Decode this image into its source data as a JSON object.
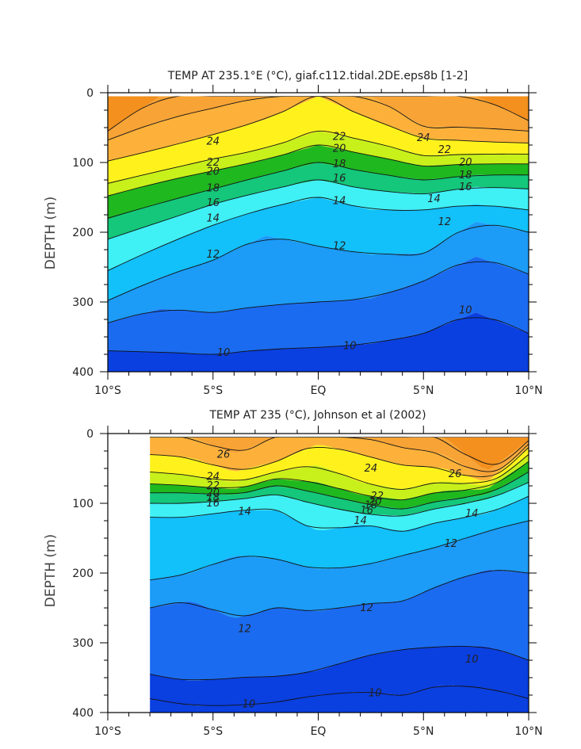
{
  "chart_data": [
    {
      "id": "top",
      "type": "heatmap",
      "title": "TEMP AT 235.1°E (°C), giaf.c112.tidal.2DE.eps8b [1-2]",
      "xlabel": "",
      "ylabel": "DEPTH (m)",
      "xlim": [
        -10,
        10
      ],
      "ylim": [
        0,
        400
      ],
      "y_inverted": true,
      "xticks": [
        {
          "v": -10,
          "label": "10°S"
        },
        {
          "v": -5,
          "label": "5°S"
        },
        {
          "v": 0,
          "label": "EQ"
        },
        {
          "v": 5,
          "label": "5°N"
        },
        {
          "v": 10,
          "label": "10°N"
        }
      ],
      "yticks": [
        0,
        100,
        200,
        300,
        400
      ],
      "data_x_range": [
        -10,
        10
      ],
      "data_y_range": [
        5,
        400
      ],
      "isotherm_depths": {
        "x": [
          -10,
          -7.5,
          -5,
          -2.5,
          0,
          2.5,
          5,
          7.5,
          10
        ],
        "levels": [
          {
            "t": 26,
            "depths": [
              55,
              5,
              5,
              5,
              5,
              5,
              5,
              5,
              40
            ]
          },
          {
            "t": 25,
            "depths": [
              68,
              40,
              22,
              5,
              5,
              5,
              48,
              50,
              55
            ]
          },
          {
            "t": 24,
            "depths": [
              98,
              80,
              60,
              38,
              5,
              38,
              65,
              70,
              72
            ]
          },
          {
            "t": 22,
            "depths": [
              130,
              112,
              95,
              80,
              55,
              70,
              90,
              88,
              88
            ]
          },
          {
            "t": 20,
            "depths": [
              148,
              128,
              112,
              96,
              75,
              90,
              105,
              102,
              102
            ]
          },
          {
            "t": 18,
            "depths": [
              180,
              158,
              138,
              118,
              100,
              115,
              125,
              118,
              118
            ]
          },
          {
            "t": 16,
            "depths": [
              210,
              185,
              160,
              140,
              125,
              140,
              145,
              135,
              138
            ]
          },
          {
            "t": 14,
            "depths": [
              255,
              220,
              190,
              165,
              150,
              168,
              168,
              160,
              168
            ]
          },
          {
            "t": 12,
            "depths": [
              298,
              265,
              240,
              205,
              220,
              232,
              230,
              185,
              200
            ]
          },
          {
            "t": 11,
            "depths": [
              330,
              310,
              315,
              305,
              300,
              295,
              270,
              235,
              260
            ]
          },
          {
            "t": 10,
            "depths": [
              370,
              372,
              375,
              368,
              365,
              360,
              345,
              315,
              345
            ]
          }
        ]
      },
      "contour_labels": [
        {
          "text": "24",
          "x": -5.0,
          "y": 70
        },
        {
          "text": "22",
          "x": -5.0,
          "y": 100
        },
        {
          "text": "20",
          "x": -5.0,
          "y": 113
        },
        {
          "text": "18",
          "x": -5.0,
          "y": 137
        },
        {
          "text": "16",
          "x": -5.0,
          "y": 158
        },
        {
          "text": "14",
          "x": -5.0,
          "y": 180
        },
        {
          "text": "12",
          "x": -5.0,
          "y": 232
        },
        {
          "text": "10",
          "x": -4.5,
          "y": 373
        },
        {
          "text": "22",
          "x": 1.0,
          "y": 63
        },
        {
          "text": "20",
          "x": 1.0,
          "y": 80
        },
        {
          "text": "18",
          "x": 1.0,
          "y": 102
        },
        {
          "text": "16",
          "x": 1.0,
          "y": 123
        },
        {
          "text": "14",
          "x": 1.0,
          "y": 155
        },
        {
          "text": "12",
          "x": 1.0,
          "y": 220
        },
        {
          "text": "10",
          "x": 1.5,
          "y": 363
        },
        {
          "text": "24",
          "x": 5.0,
          "y": 65
        },
        {
          "text": "22",
          "x": 6.0,
          "y": 82
        },
        {
          "text": "20",
          "x": 7.0,
          "y": 100
        },
        {
          "text": "18",
          "x": 7.0,
          "y": 118
        },
        {
          "text": "16",
          "x": 7.0,
          "y": 135
        },
        {
          "text": "14",
          "x": 5.5,
          "y": 152
        },
        {
          "text": "12",
          "x": 6.0,
          "y": 185
        },
        {
          "text": "10",
          "x": 7.0,
          "y": 312
        }
      ]
    },
    {
      "id": "bottom",
      "type": "heatmap",
      "title": "TEMP AT 235 (°C), Johnson et al (2002)",
      "xlabel": "",
      "ylabel": "DEPTH (m)",
      "xlim": [
        -10,
        10
      ],
      "ylim": [
        0,
        400
      ],
      "y_inverted": true,
      "xticks": [
        {
          "v": -10,
          "label": "10°S"
        },
        {
          "v": -5,
          "label": "5°S"
        },
        {
          "v": 0,
          "label": "EQ"
        },
        {
          "v": 5,
          "label": "5°N"
        },
        {
          "v": 10,
          "label": "10°N"
        }
      ],
      "yticks": [
        0,
        100,
        200,
        300,
        400
      ],
      "data_x_range": [
        -8,
        10
      ],
      "data_y_range": [
        5,
        400
      ],
      "isotherm_depths": {
        "x": [
          -8,
          -6,
          -4,
          -2,
          0,
          2,
          4,
          6,
          8,
          10
        ],
        "levels": [
          {
            "t": 27,
            "depths": [
              5,
              5,
              5,
              5,
              5,
              5,
              5,
              5,
              5,
              5
            ]
          },
          {
            "t": 26,
            "depths": [
              5,
              5,
              5,
              5,
              5,
              5,
              5,
              5,
              55,
              10
            ]
          },
          {
            "t": 25,
            "depths": [
              5,
              5,
              30,
              5,
              5,
              5,
              20,
              30,
              65,
              15
            ]
          },
          {
            "t": 24,
            "depths": [
              30,
              35,
              55,
              40,
              15,
              30,
              45,
              50,
              70,
              20
            ]
          },
          {
            "t": 22,
            "depths": [
              55,
              60,
              70,
              55,
              45,
              70,
              80,
              68,
              75,
              30
            ]
          },
          {
            "t": 20,
            "depths": [
              72,
              75,
              80,
              65,
              70,
              88,
              95,
              82,
              80,
              40
            ]
          },
          {
            "t": 18,
            "depths": [
              85,
              85,
              88,
              75,
              85,
              100,
              108,
              95,
              88,
              55
            ]
          },
          {
            "t": 16,
            "depths": [
              100,
              100,
              95,
              88,
              102,
              115,
              118,
              105,
              95,
              70
            ]
          },
          {
            "t": 14,
            "depths": [
              120,
              120,
              110,
              110,
              140,
              130,
              140,
              125,
              115,
              90
            ]
          },
          {
            "t": 12,
            "depths": [
              210,
              200,
              175,
              180,
              195,
              190,
              175,
              160,
              140,
              125
            ]
          },
          {
            "t": 11,
            "depths": [
              250,
              240,
              265,
              250,
              255,
              245,
              240,
              215,
              195,
              200
            ]
          },
          {
            "t": 10,
            "depths": [
              345,
              355,
              350,
              348,
              340,
              320,
              310,
              305,
              305,
              325
            ]
          },
          {
            "t": 9,
            "depths": [
              380,
              390,
              390,
              385,
              375,
              370,
              375,
              360,
              365,
              380
            ]
          }
        ]
      },
      "contour_labels": [
        {
          "text": "26",
          "x": -4.5,
          "y": 30
        },
        {
          "text": "24",
          "x": -5.0,
          "y": 62
        },
        {
          "text": "22",
          "x": -5.0,
          "y": 75
        },
        {
          "text": "20",
          "x": -5.0,
          "y": 85
        },
        {
          "text": "18",
          "x": -5.0,
          "y": 92
        },
        {
          "text": "16",
          "x": -5.0,
          "y": 100
        },
        {
          "text": "14",
          "x": -3.5,
          "y": 112
        },
        {
          "text": "12",
          "x": -3.5,
          "y": 280
        },
        {
          "text": "10",
          "x": -3.3,
          "y": 388
        },
        {
          "text": "24",
          "x": 2.5,
          "y": 50
        },
        {
          "text": "22",
          "x": 2.8,
          "y": 90
        },
        {
          "text": "20",
          "x": 2.7,
          "y": 98
        },
        {
          "text": "18",
          "x": 2.5,
          "y": 103
        },
        {
          "text": "16",
          "x": 2.3,
          "y": 110
        },
        {
          "text": "14",
          "x": 2.0,
          "y": 125
        },
        {
          "text": "12",
          "x": 2.3,
          "y": 250
        },
        {
          "text": "10",
          "x": 2.7,
          "y": 372
        },
        {
          "text": "26",
          "x": 6.5,
          "y": 58
        },
        {
          "text": "14",
          "x": 7.3,
          "y": 115
        },
        {
          "text": "12",
          "x": 6.3,
          "y": 158
        },
        {
          "text": "10",
          "x": 7.3,
          "y": 324
        }
      ]
    }
  ],
  "colormap": [
    {
      "t": 8,
      "color": "#0a3fe0"
    },
    {
      "t": 9,
      "color": "#0a3fe0"
    },
    {
      "t": 10,
      "color": "#1b6bf0"
    },
    {
      "t": 11,
      "color": "#1c9bf7"
    },
    {
      "t": 12,
      "color": "#12c0fa"
    },
    {
      "t": 13,
      "color": "#27d8fb"
    },
    {
      "t": 14,
      "color": "#3ff0f5"
    },
    {
      "t": 15,
      "color": "#22e0b0"
    },
    {
      "t": 16,
      "color": "#14c77a"
    },
    {
      "t": 17,
      "color": "#2ad02a"
    },
    {
      "t": 18,
      "color": "#1fb81f"
    },
    {
      "t": 19,
      "color": "#86e01e"
    },
    {
      "t": 20,
      "color": "#c8f01a"
    },
    {
      "t": 21,
      "color": "#f2f51f"
    },
    {
      "t": 22,
      "color": "#fff21c"
    },
    {
      "t": 23,
      "color": "#ffd53b"
    },
    {
      "t": 24,
      "color": "#fdb13a"
    },
    {
      "t": 25,
      "color": "#f7a336"
    },
    {
      "t": 26,
      "color": "#f3901e"
    },
    {
      "t": 27,
      "color": "#f57b18"
    },
    {
      "t": 28,
      "color": "#f5461a"
    }
  ]
}
